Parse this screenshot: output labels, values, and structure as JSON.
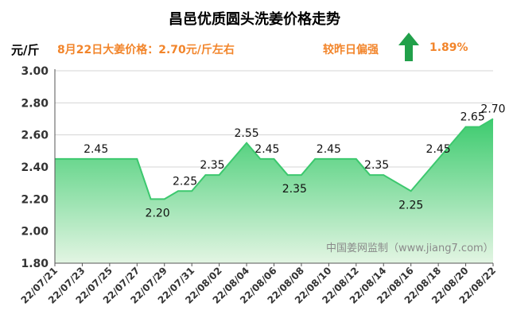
{
  "header": {
    "title": "昌邑优质圆头洗姜价格走势",
    "unit": "元/斤",
    "price_note": "8月22日大姜价格：2.70元/斤左右",
    "compare_label": "较昨日偏强",
    "change_pct": "1.89%"
  },
  "colors": {
    "accent": "#f2852b",
    "line": "#3cc86e",
    "fill_top": "#3ccb6e",
    "fill_bottom": "#dff4df",
    "arrow": "#21a04a"
  },
  "icons": {
    "trend": "up-arrow-icon"
  },
  "chart_data": {
    "type": "area",
    "title": "昌邑优质圆头洗姜价格走势",
    "ylabel": "元/斤",
    "xlabel": "",
    "ylim": [
      1.8,
      3.0
    ],
    "yticks": [
      "3.00",
      "2.80",
      "2.60",
      "2.40",
      "2.20",
      "2.00",
      "1.80"
    ],
    "grid": true,
    "x_ticks": [
      "22/07/21",
      "22/07/23",
      "22/07/25",
      "22/07/27",
      "22/07/29",
      "22/07/31",
      "22/08/02",
      "22/08/04",
      "22/08/06",
      "22/08/08",
      "22/08/10",
      "22/08/12",
      "22/08/14",
      "22/08/16",
      "22/08/18",
      "22/08/20",
      "22/08/22"
    ],
    "series": [
      {
        "name": "价格",
        "points": [
          [
            "22/07/21",
            2.45
          ],
          [
            "22/07/27",
            2.45
          ],
          [
            "22/07/28",
            2.2
          ],
          [
            "22/07/29",
            2.2
          ],
          [
            "22/07/30",
            2.25
          ],
          [
            "22/07/31",
            2.25
          ],
          [
            "22/08/01",
            2.35
          ],
          [
            "22/08/02",
            2.35
          ],
          [
            "22/08/04",
            2.55
          ],
          [
            "22/08/05",
            2.45
          ],
          [
            "22/08/06",
            2.45
          ],
          [
            "22/08/07",
            2.35
          ],
          [
            "22/08/08",
            2.35
          ],
          [
            "22/08/09",
            2.45
          ],
          [
            "22/08/12",
            2.45
          ],
          [
            "22/08/13",
            2.35
          ],
          [
            "22/08/14",
            2.35
          ],
          [
            "22/08/16",
            2.25
          ],
          [
            "22/08/20",
            2.65
          ],
          [
            "22/08/21",
            2.65
          ],
          [
            "22/08/22",
            2.7
          ]
        ]
      }
    ],
    "data_labels": [
      {
        "x": "22/07/24",
        "value": 2.45,
        "text": "2.45"
      },
      {
        "x": "22/07/28.5",
        "value": 2.2,
        "text": "2.20"
      },
      {
        "x": "22/07/30.5",
        "value": 2.25,
        "text": "2.25"
      },
      {
        "x": "22/08/01.5",
        "value": 2.35,
        "text": "2.35"
      },
      {
        "x": "22/08/04",
        "value": 2.55,
        "text": "2.55"
      },
      {
        "x": "22/08/05.5",
        "value": 2.45,
        "text": "2.45"
      },
      {
        "x": "22/08/07.5",
        "value": 2.35,
        "text": "2.35"
      },
      {
        "x": "22/08/10",
        "value": 2.45,
        "text": "2.45"
      },
      {
        "x": "22/08/13.5",
        "value": 2.35,
        "text": "2.35"
      },
      {
        "x": "22/08/16",
        "value": 2.25,
        "text": "2.25"
      },
      {
        "x": "22/08/18",
        "value": 2.45,
        "text": "2.45"
      },
      {
        "x": "22/08/20.5",
        "value": 2.65,
        "text": "2.65"
      },
      {
        "x": "22/08/22",
        "value": 2.7,
        "text": "2.70"
      }
    ],
    "watermark": "中国姜网监制（www.jiang7.com）"
  }
}
